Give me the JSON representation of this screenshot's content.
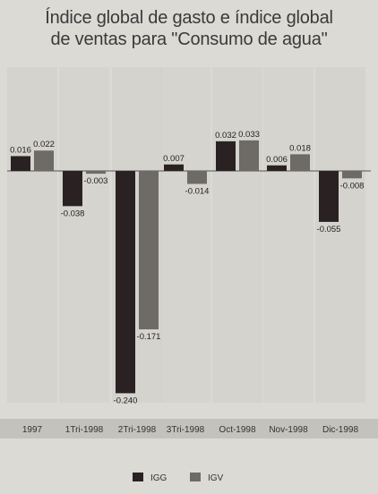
{
  "chart_data": {
    "type": "bar",
    "title": "Índice global de gasto e índice global de ventas para \"Consumo de agua\"",
    "title_lines": [
      "Índice global de gasto e índice global",
      "de ventas para \"Consumo de agua\""
    ],
    "categories": [
      "1997",
      "1Tri-1998",
      "2Tri-1998",
      "3Tri-1998",
      "Oct-1998",
      "Nov-1998",
      "Dic-1998"
    ],
    "series": [
      {
        "name": "IGG",
        "color": "#2a2222",
        "values": [
          0.016,
          -0.038,
          -0.24,
          0.007,
          0.032,
          0.006,
          -0.055
        ],
        "labels": [
          "0.016",
          "-0.038",
          "-0.240",
          "0.007",
          "0.032",
          "0.006",
          "-0.055"
        ]
      },
      {
        "name": "IGV",
        "color": "#6e6b67",
        "values": [
          0.022,
          -0.003,
          -0.171,
          -0.014,
          0.033,
          0.018,
          -0.008
        ],
        "labels": [
          "0.022",
          "-0.003",
          "-0.171",
          "-0.014",
          "0.033",
          "0.018",
          "-0.008"
        ]
      }
    ],
    "ylim": [
      -0.24,
      0.033
    ],
    "grid": false,
    "legend_position": "bottom"
  }
}
